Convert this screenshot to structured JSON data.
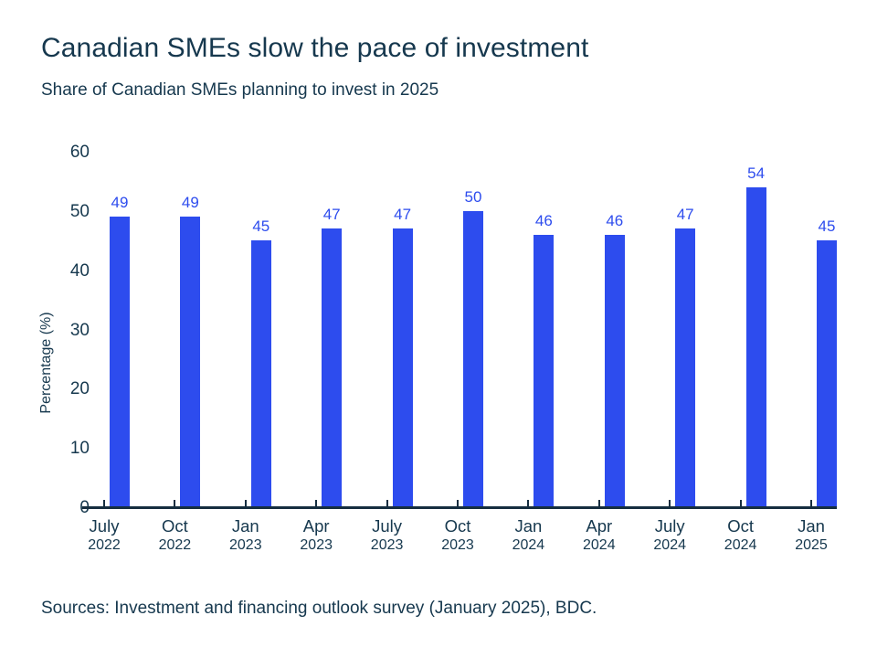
{
  "header": {
    "title": "Canadian SMEs slow the pace of investment",
    "subtitle": "Share of Canadian SMEs planning to invest in 2025"
  },
  "chart_data": {
    "type": "bar",
    "title": "Canadian SMEs slow the pace of investment",
    "subtitle": "Share of Canadian SMEs planning to invest in 2025",
    "categories": [
      {
        "month": "July",
        "year": "2022"
      },
      {
        "month": "Oct",
        "year": "2022"
      },
      {
        "month": "Jan",
        "year": "2023"
      },
      {
        "month": "Apr",
        "year": "2023"
      },
      {
        "month": "July",
        "year": "2023"
      },
      {
        "month": "Oct",
        "year": "2023"
      },
      {
        "month": "Jan",
        "year": "2024"
      },
      {
        "month": "Apr",
        "year": "2024"
      },
      {
        "month": "July",
        "year": "2024"
      },
      {
        "month": "Oct",
        "year": "2024"
      },
      {
        "month": "Jan",
        "year": "2025"
      }
    ],
    "values": [
      49,
      49,
      45,
      47,
      47,
      50,
      46,
      46,
      47,
      54,
      45
    ],
    "xlabel": "",
    "ylabel": "Percentage (%)",
    "ylim": [
      0,
      60
    ],
    "yticks": [
      0,
      10,
      20,
      30,
      40,
      50,
      60
    ],
    "grid": false,
    "legend": false,
    "value_labels_shown": true
  },
  "footer": {
    "source": "Sources: Investment and financing outlook survey (January 2025), BDC."
  },
  "colors": {
    "bar": "#2d4cee",
    "value_label": "#2d4cee",
    "text": "#16384e",
    "axis": "#152e40",
    "background": "#ffffff"
  }
}
